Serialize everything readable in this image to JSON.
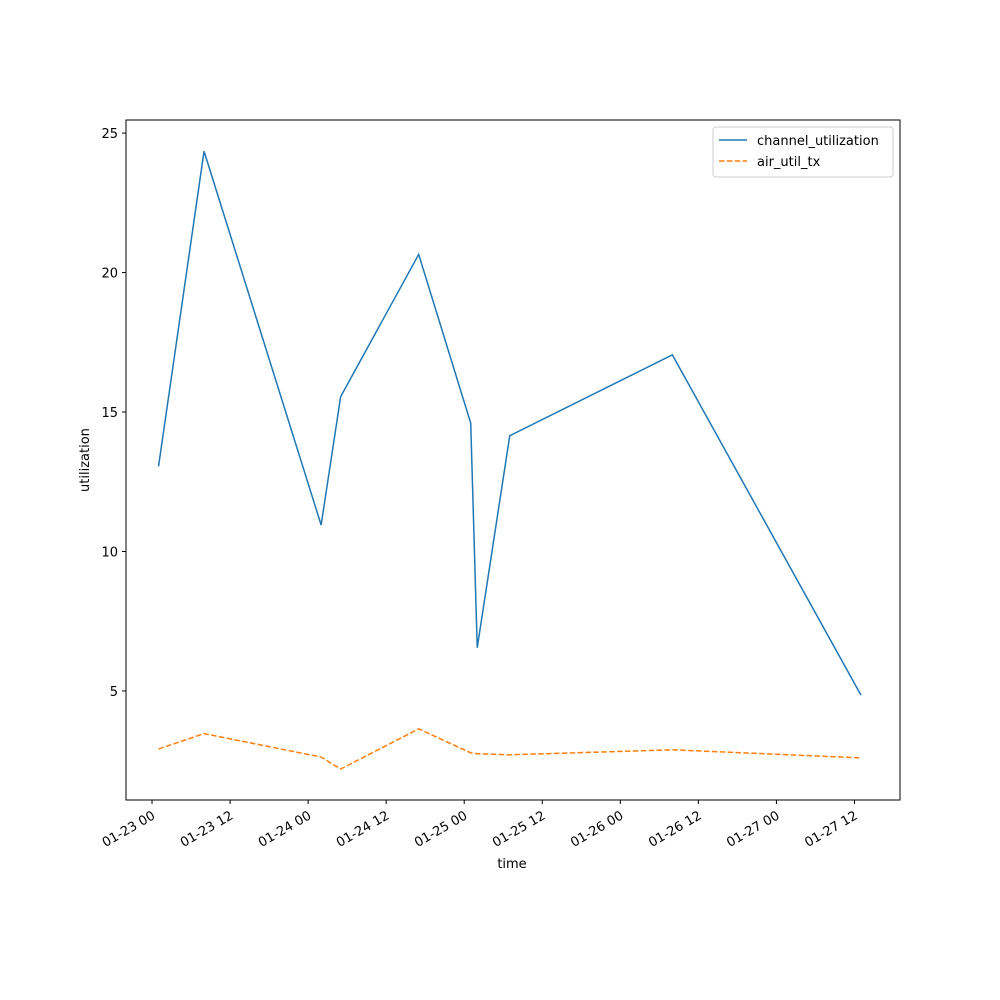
{
  "chart_data": {
    "type": "line",
    "x_label": "time",
    "y_label": "utilization",
    "x": [
      "01-23 01",
      "01-23 08",
      "01-24 02",
      "01-24 05",
      "01-24 17",
      "01-25 01",
      "01-25 02",
      "01-25 07",
      "01-26 08",
      "01-27 13"
    ],
    "series": [
      {
        "name": "channel_utilization",
        "color": "#1f77b4",
        "dash": "solid",
        "values": [
          13.05,
          24.35,
          10.95,
          15.55,
          20.65,
          14.6,
          6.55,
          14.15,
          17.05,
          4.85
        ]
      },
      {
        "name": "air_util_tx",
        "color": "#ff7f0e",
        "dash": "dashed",
        "values": [
          2.92,
          3.47,
          2.63,
          2.2,
          3.64,
          2.78,
          2.75,
          2.71,
          2.89,
          2.6
        ]
      }
    ],
    "xlim": [
      "01-22 20",
      "01-27 19"
    ],
    "xticks": [
      "01-23 00",
      "01-23 12",
      "01-24 00",
      "01-24 12",
      "01-25 00",
      "01-25 12",
      "01-26 00",
      "01-26 12",
      "01-27 00",
      "01-27 12"
    ],
    "ylim": [
      1.09,
      25.47
    ],
    "yticks": [
      5,
      10,
      15,
      20,
      25
    ],
    "grid": false,
    "legend": "upper right"
  }
}
